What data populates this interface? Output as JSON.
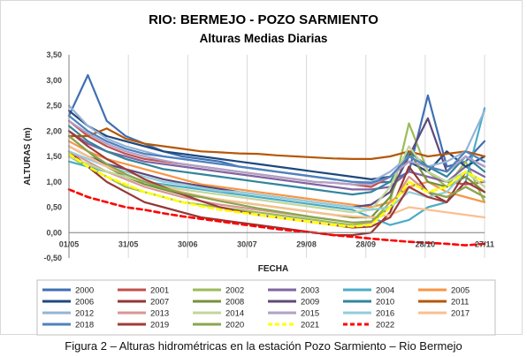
{
  "caption": "Figura 2 – Alturas hidrométricas en la estación Pozo Sarmiento – Rio Bermejo",
  "chart_data": {
    "type": "line",
    "title": "RIO: BERMEJO - POZO SARMIENTO",
    "subtitle": "Alturas Medias Diarias",
    "xlabel": "FECHA",
    "ylabel": "ALTURAS (m)",
    "ylim": [
      -0.5,
      3.5
    ],
    "yticks": [
      "3,50",
      "3,00",
      "2,50",
      "2,00",
      "1,50",
      "1,00",
      "0,50",
      "0,00",
      "-0,50"
    ],
    "x_ticks": [
      "01/05",
      "31/05",
      "30/06",
      "30/07",
      "29/08",
      "28/09",
      "28/10",
      "27/11"
    ],
    "grid": "vertical",
    "legend_position": "bottom",
    "series": [
      {
        "name": "2000",
        "color": "#3f6fb4",
        "dash": false,
        "values": [
          2.3,
          3.1,
          2.2,
          1.9,
          1.75,
          1.6,
          1.5,
          1.45,
          1.4,
          1.3,
          1.25,
          1.2,
          1.15,
          1.1,
          1.05,
          1.0,
          0.98,
          1.0,
          1.2,
          2.7,
          1.3,
          1.4,
          1.8
        ]
      },
      {
        "name": "2001",
        "color": "#c0504d",
        "dash": false,
        "values": [
          2.2,
          1.9,
          1.7,
          1.55,
          1.45,
          1.4,
          1.35,
          1.3,
          1.25,
          1.2,
          1.15,
          1.1,
          1.05,
          1.0,
          0.98,
          0.95,
          0.9,
          1.1,
          1.4,
          1.2,
          1.0,
          0.95,
          1.0
        ]
      },
      {
        "name": "2002",
        "color": "#9bbb59",
        "dash": false,
        "values": [
          1.5,
          1.3,
          1.1,
          0.9,
          0.8,
          0.7,
          0.6,
          0.55,
          0.5,
          0.45,
          0.4,
          0.35,
          0.3,
          0.25,
          0.2,
          0.15,
          0.2,
          0.6,
          2.15,
          1.2,
          0.9,
          1.4,
          0.6
        ]
      },
      {
        "name": "2003",
        "color": "#8064a2",
        "dash": false,
        "values": [
          2.0,
          1.75,
          1.6,
          1.5,
          1.4,
          1.35,
          1.3,
          1.25,
          1.2,
          1.15,
          1.1,
          1.05,
          1.0,
          0.95,
          0.9,
          0.85,
          0.85,
          0.9,
          1.2,
          1.1,
          1.0,
          1.3,
          1.1
        ]
      },
      {
        "name": "2004",
        "color": "#4bacc6",
        "dash": false,
        "values": [
          1.4,
          1.3,
          1.2,
          1.1,
          1.0,
          0.95,
          0.9,
          0.85,
          0.8,
          0.75,
          0.7,
          0.65,
          0.6,
          0.55,
          0.5,
          0.45,
          0.3,
          0.15,
          0.25,
          0.5,
          0.6,
          1.0,
          2.45
        ]
      },
      {
        "name": "2005",
        "color": "#f79646",
        "dash": false,
        "values": [
          1.8,
          1.6,
          1.45,
          1.35,
          1.25,
          1.15,
          1.05,
          0.95,
          0.9,
          0.85,
          0.8,
          0.75,
          0.7,
          0.65,
          0.6,
          0.55,
          0.5,
          0.6,
          0.9,
          1.0,
          0.8,
          0.7,
          0.6
        ]
      },
      {
        "name": "2006",
        "color": "#1f497d",
        "dash": false,
        "values": [
          2.4,
          2.1,
          1.9,
          1.8,
          1.7,
          1.6,
          1.55,
          1.5,
          1.45,
          1.4,
          1.35,
          1.3,
          1.25,
          1.2,
          1.15,
          1.1,
          1.05,
          1.1,
          1.4,
          1.2,
          1.6,
          1.3,
          1.5
        ]
      },
      {
        "name": "2007",
        "color": "#943634",
        "dash": false,
        "values": [
          1.6,
          1.3,
          1.0,
          0.8,
          0.6,
          0.5,
          0.4,
          0.3,
          0.25,
          0.2,
          0.15,
          0.1,
          0.05,
          0.0,
          -0.05,
          -0.05,
          0.0,
          0.4,
          1.3,
          0.8,
          0.6,
          1.2,
          1.0
        ]
      },
      {
        "name": "2008",
        "color": "#76923c",
        "dash": false,
        "values": [
          1.9,
          1.6,
          1.3,
          1.1,
          0.95,
          0.85,
          0.75,
          0.7,
          0.65,
          0.6,
          0.55,
          0.5,
          0.45,
          0.4,
          0.35,
          0.3,
          0.3,
          0.7,
          1.6,
          1.0,
          0.9,
          1.1,
          0.8
        ]
      },
      {
        "name": "2009",
        "color": "#5f497a",
        "dash": false,
        "values": [
          1.7,
          1.5,
          1.35,
          1.25,
          1.15,
          1.05,
          0.98,
          0.92,
          0.86,
          0.8,
          0.75,
          0.7,
          0.65,
          0.6,
          0.55,
          0.5,
          0.55,
          0.8,
          1.5,
          2.25,
          1.2,
          1.5,
          1.3
        ]
      },
      {
        "name": "2010",
        "color": "#31859c",
        "dash": false,
        "values": [
          2.1,
          1.8,
          1.6,
          1.45,
          1.35,
          1.25,
          1.2,
          1.15,
          1.1,
          1.05,
          1.0,
          0.95,
          0.9,
          0.85,
          0.8,
          0.75,
          0.8,
          1.0,
          1.6,
          1.3,
          1.1,
          1.5,
          1.2
        ]
      },
      {
        "name": "2011",
        "color": "#b65708",
        "dash": false,
        "values": [
          1.9,
          1.9,
          2.05,
          1.85,
          1.75,
          1.7,
          1.65,
          1.6,
          1.58,
          1.56,
          1.55,
          1.52,
          1.5,
          1.48,
          1.46,
          1.45,
          1.45,
          1.5,
          1.6,
          1.5,
          1.55,
          1.6,
          1.5
        ]
      },
      {
        "name": "2012",
        "color": "#95b3d7",
        "dash": false,
        "values": [
          2.5,
          2.1,
          1.85,
          1.7,
          1.6,
          1.5,
          1.45,
          1.4,
          1.35,
          1.3,
          1.25,
          1.2,
          1.15,
          1.1,
          1.05,
          1.0,
          1.0,
          1.2,
          1.5,
          1.3,
          1.4,
          1.6,
          2.4
        ]
      },
      {
        "name": "2013",
        "color": "#d99694",
        "dash": false,
        "values": [
          1.6,
          1.4,
          1.2,
          1.05,
          0.9,
          0.8,
          0.7,
          0.62,
          0.55,
          0.5,
          0.45,
          0.4,
          0.35,
          0.3,
          0.25,
          0.2,
          0.2,
          0.5,
          1.1,
          0.8,
          0.7,
          0.9,
          0.7
        ]
      },
      {
        "name": "2014",
        "color": "#c3d69b",
        "dash": false,
        "values": [
          1.5,
          1.35,
          1.2,
          1.1,
          1.0,
          0.92,
          0.85,
          0.8,
          0.75,
          0.7,
          0.65,
          0.6,
          0.55,
          0.5,
          0.45,
          0.4,
          0.45,
          0.9,
          1.7,
          1.2,
          1.0,
          1.2,
          0.9
        ]
      },
      {
        "name": "2015",
        "color": "#b2a1c7",
        "dash": false,
        "values": [
          2.2,
          1.95,
          1.75,
          1.6,
          1.5,
          1.42,
          1.35,
          1.3,
          1.25,
          1.2,
          1.15,
          1.1,
          1.05,
          1.0,
          0.98,
          0.95,
          0.95,
          1.1,
          1.4,
          1.3,
          1.2,
          1.5,
          1.3
        ]
      },
      {
        "name": "2016",
        "color": "#92cddc",
        "dash": false,
        "values": [
          1.6,
          1.45,
          1.3,
          1.2,
          1.1,
          1.0,
          0.95,
          0.88,
          0.82,
          0.8,
          0.75,
          0.7,
          0.65,
          0.6,
          0.55,
          0.5,
          0.45,
          0.5,
          0.8,
          0.7,
          0.8,
          1.2,
          1.0
        ]
      },
      {
        "name": "2017",
        "color": "#fac090",
        "dash": false,
        "values": [
          1.7,
          1.5,
          1.3,
          1.15,
          1.0,
          0.9,
          0.8,
          0.72,
          0.65,
          0.6,
          0.55,
          0.5,
          0.45,
          0.4,
          0.35,
          0.32,
          0.3,
          0.35,
          0.5,
          0.45,
          0.4,
          0.35,
          0.3
        ]
      },
      {
        "name": "2018",
        "color": "#4f81bd",
        "dash": false,
        "values": [
          2.3,
          2.0,
          1.8,
          1.65,
          1.55,
          1.5,
          1.45,
          1.4,
          1.35,
          1.3,
          1.25,
          1.2,
          1.15,
          1.1,
          1.05,
          1.0,
          0.98,
          1.1,
          1.5,
          1.3,
          1.2,
          1.6,
          1.4
        ]
      },
      {
        "name": "2019",
        "color": "#9f3b3a",
        "dash": false,
        "values": [
          2.0,
          1.7,
          1.45,
          1.25,
          1.05,
          0.9,
          0.75,
          0.62,
          0.5,
          0.42,
          0.35,
          0.3,
          0.25,
          0.2,
          0.15,
          0.1,
          0.12,
          0.3,
          0.9,
          0.7,
          0.6,
          1.0,
          0.8
        ]
      },
      {
        "name": "2020",
        "color": "#8aa64e",
        "dash": false,
        "values": [
          1.9,
          1.6,
          1.35,
          1.15,
          1.0,
          0.88,
          0.78,
          0.7,
          0.62,
          0.55,
          0.48,
          0.42,
          0.36,
          0.3,
          0.25,
          0.2,
          0.22,
          0.5,
          1.0,
          0.8,
          0.7,
          0.9,
          0.7
        ]
      },
      {
        "name": "2021",
        "color": "#ffff00",
        "dash": true,
        "values": [
          1.55,
          1.3,
          1.1,
          0.95,
          0.8,
          0.7,
          0.6,
          0.52,
          0.45,
          0.4,
          0.35,
          0.3,
          0.25,
          0.2,
          0.15,
          0.12,
          0.15,
          0.5,
          1.0,
          0.8,
          0.9,
          1.2,
          1.0
        ]
      },
      {
        "name": "2022",
        "color": "#ff0000",
        "dash": true,
        "values": [
          0.85,
          0.7,
          0.6,
          0.5,
          0.45,
          0.38,
          0.32,
          0.27,
          0.22,
          0.17,
          0.12,
          0.07,
          0.03,
          0.0,
          -0.05,
          -0.08,
          -0.12,
          -0.15,
          -0.18,
          -0.2,
          -0.22,
          -0.25,
          -0.22
        ]
      }
    ]
  }
}
